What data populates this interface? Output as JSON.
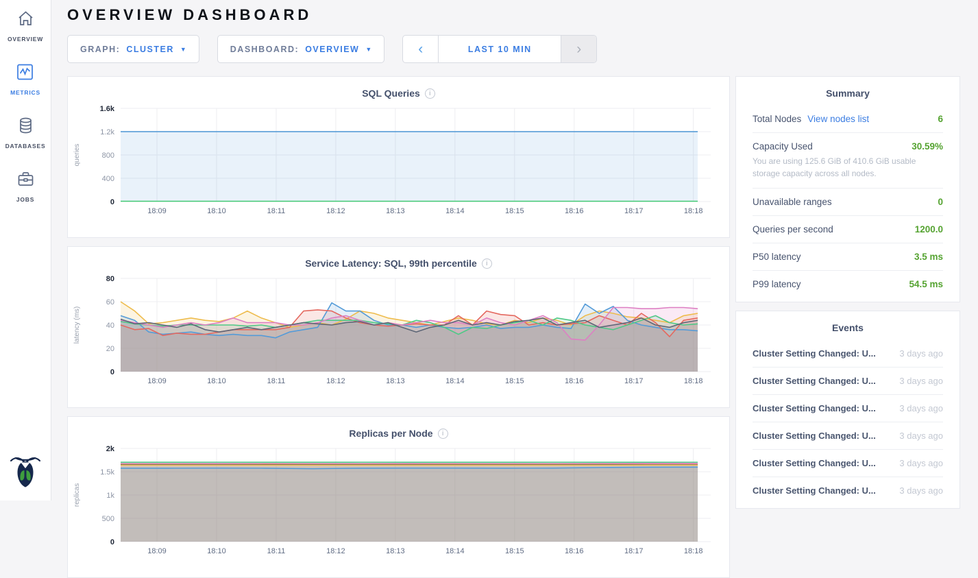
{
  "app": {
    "title": "OVERVIEW DASHBOARD"
  },
  "sidebar": {
    "items": [
      {
        "label": "OVERVIEW",
        "icon": "home-icon",
        "active": false
      },
      {
        "label": "METRICS",
        "icon": "metrics-icon",
        "active": true
      },
      {
        "label": "DATABASES",
        "icon": "database-icon",
        "active": false
      },
      {
        "label": "JOBS",
        "icon": "briefcase-icon",
        "active": false
      }
    ]
  },
  "toolbar": {
    "graph": {
      "label": "GRAPH:",
      "value": "CLUSTER"
    },
    "dashboard": {
      "label": "DASHBOARD:",
      "value": "OVERVIEW"
    },
    "time_range": {
      "label": "LAST 10 MIN",
      "prev_enabled": true,
      "next_enabled": false
    }
  },
  "summary": {
    "title": "Summary",
    "rows": [
      {
        "label": "Total Nodes",
        "link": "View nodes list",
        "value": "6"
      },
      {
        "label": "Capacity Used",
        "value": "30.59%",
        "caption": "You are using 125.6 GiB of 410.6 GiB usable storage capacity across all nodes."
      },
      {
        "label": "Unavailable ranges",
        "value": "0"
      },
      {
        "label": "Queries per second",
        "value": "1200.0"
      },
      {
        "label": "P50 latency",
        "value": "3.5 ms"
      },
      {
        "label": "P99 latency",
        "value": "54.5 ms"
      }
    ],
    "accent_green": "#55a331",
    "link_blue": "#3b7de2"
  },
  "events": {
    "title": "Events",
    "rows": [
      {
        "text": "Cluster Setting Changed: U...",
        "time": "3 days ago"
      },
      {
        "text": "Cluster Setting Changed: U...",
        "time": "3 days ago"
      },
      {
        "text": "Cluster Setting Changed: U...",
        "time": "3 days ago"
      },
      {
        "text": "Cluster Setting Changed: U...",
        "time": "3 days ago"
      },
      {
        "text": "Cluster Setting Changed: U...",
        "time": "3 days ago"
      },
      {
        "text": "Cluster Setting Changed: U...",
        "time": "3 days ago"
      }
    ]
  },
  "chart_data": [
    {
      "type": "area",
      "title": "SQL Queries",
      "xlabel": "",
      "ylabel": "queries",
      "ylim": [
        0,
        1600
      ],
      "grid": true,
      "legend": "none",
      "yticks": [
        {
          "v": 1600,
          "label": "1.6k"
        },
        {
          "v": 1200,
          "label": "1.2k"
        },
        {
          "v": 800,
          "label": "800"
        },
        {
          "v": 400,
          "label": "400"
        },
        {
          "v": 0,
          "label": "0"
        }
      ],
      "xticks": [
        "18:09",
        "18:10",
        "18:11",
        "18:12",
        "18:13",
        "18:14",
        "18:15",
        "18:16",
        "18:17",
        "18:18"
      ],
      "series": [
        {
          "name": "series-1",
          "color": "#4a94d4",
          "fill_opacity": 0.12,
          "values": [
            1200,
            1200
          ]
        },
        {
          "name": "series-2",
          "color": "#42ca73",
          "fill_opacity": 0,
          "values": [
            6,
            6
          ]
        }
      ]
    },
    {
      "type": "line",
      "title": "Service Latency: SQL, 99th percentile",
      "xlabel": "",
      "ylabel": "latency (ms)",
      "ylim": [
        0,
        80
      ],
      "grid": true,
      "legend": "none",
      "yticks": [
        {
          "v": 80,
          "label": "80"
        },
        {
          "v": 60,
          "label": "60"
        },
        {
          "v": 40,
          "label": "40"
        },
        {
          "v": 20,
          "label": "20"
        },
        {
          "v": 0,
          "label": "0"
        }
      ],
      "xticks": [
        "18:09",
        "18:10",
        "18:11",
        "18:12",
        "18:13",
        "18:14",
        "18:15",
        "18:16",
        "18:17",
        "18:18"
      ],
      "series": [
        {
          "name": "series-1",
          "color": "#eebc4d",
          "fill_opacity": 0.16,
          "values": [
            60,
            52,
            41,
            42,
            44,
            46,
            44,
            43,
            46,
            52,
            46,
            42,
            38,
            40,
            42,
            40,
            45,
            52,
            50,
            46,
            44,
            42,
            40,
            43,
            46,
            44,
            41,
            40,
            44,
            42,
            46,
            44,
            40,
            48,
            52,
            50,
            47,
            46,
            44,
            42,
            48,
            50
          ]
        },
        {
          "name": "series-2",
          "color": "#549bd8",
          "fill_opacity": 0.16,
          "values": [
            48,
            44,
            34,
            32,
            33,
            34,
            32,
            31,
            32,
            31,
            31,
            29,
            34,
            36,
            38,
            59,
            52,
            52,
            44,
            40,
            40,
            38,
            40,
            38,
            37,
            38,
            40,
            37,
            38,
            38,
            40,
            38,
            37,
            58,
            50,
            56,
            44,
            40,
            38,
            36,
            36,
            35
          ]
        },
        {
          "name": "series-3",
          "color": "#e4685f",
          "fill_opacity": 0.16,
          "values": [
            40,
            36,
            37,
            31,
            33,
            32,
            32,
            34,
            36,
            36,
            36,
            36,
            38,
            52,
            53,
            52,
            46,
            42,
            40,
            39,
            40,
            41,
            40,
            40,
            48,
            40,
            52,
            49,
            48,
            40,
            42,
            40,
            41,
            42,
            48,
            44,
            40,
            50,
            42,
            30,
            44,
            46
          ]
        },
        {
          "name": "series-4",
          "color": "#4fc987",
          "fill_opacity": 0.16,
          "values": [
            43,
            41,
            40,
            39,
            40,
            40,
            40,
            40,
            40,
            39,
            40,
            38,
            40,
            42,
            44,
            44,
            44,
            44,
            42,
            41,
            40,
            44,
            42,
            38,
            32,
            38,
            37,
            40,
            42,
            44,
            40,
            46,
            44,
            40,
            38,
            36,
            40,
            44,
            48,
            42,
            40,
            41
          ]
        },
        {
          "name": "series-5",
          "color": "#dd7fc3",
          "fill_opacity": 0.16,
          "values": [
            44,
            42,
            40,
            38,
            40,
            42,
            40,
            42,
            46,
            42,
            42,
            42,
            40,
            40,
            42,
            46,
            48,
            44,
            40,
            42,
            40,
            42,
            44,
            42,
            42,
            40,
            46,
            42,
            40,
            44,
            48,
            42,
            28,
            27,
            40,
            55,
            55,
            54,
            54,
            55,
            55,
            54
          ]
        },
        {
          "name": "series-6",
          "color": "#5d6677",
          "fill_opacity": 0.16,
          "values": [
            45,
            41,
            42,
            40,
            38,
            41,
            36,
            34,
            36,
            38,
            36,
            38,
            40,
            42,
            41,
            40,
            42,
            43,
            40,
            42,
            38,
            34,
            38,
            40,
            44,
            40,
            42,
            40,
            43,
            44,
            46,
            40,
            42,
            44,
            38,
            40,
            42,
            46,
            40,
            38,
            42,
            44
          ]
        }
      ]
    },
    {
      "type": "line",
      "title": "Replicas per Node",
      "xlabel": "",
      "ylabel": "replicas",
      "ylim": [
        0,
        2000
      ],
      "grid": true,
      "legend": "none",
      "yticks": [
        {
          "v": 2000,
          "label": "2k"
        },
        {
          "v": 1500,
          "label": "1.5k"
        },
        {
          "v": 1000,
          "label": "1k"
        },
        {
          "v": 500,
          "label": "500"
        },
        {
          "v": 0,
          "label": "0"
        }
      ],
      "xticks": [
        "18:09",
        "18:10",
        "18:11",
        "18:12",
        "18:13",
        "18:14",
        "18:15",
        "18:16",
        "18:17",
        "18:18"
      ],
      "series": [
        {
          "name": "series-1",
          "color": "#4fc987",
          "fill_opacity": 0.14,
          "values": [
            1703,
            1703,
            1704,
            1703,
            1703,
            1704,
            1703,
            1703,
            1703,
            1704,
            1703,
            1703,
            1704
          ]
        },
        {
          "name": "series-2",
          "color": "#dd7fc3",
          "fill_opacity": 0.14,
          "values": [
            1672,
            1672,
            1673,
            1672,
            1672,
            1672,
            1673,
            1672,
            1672,
            1672,
            1673,
            1678,
            1678
          ]
        },
        {
          "name": "series-3",
          "color": "#e4685f",
          "fill_opacity": 0.14,
          "values": [
            1660,
            1660,
            1658,
            1662,
            1660,
            1660,
            1660,
            1661,
            1660,
            1660,
            1660,
            1655,
            1656
          ]
        },
        {
          "name": "series-4",
          "color": "#5d6677",
          "fill_opacity": 0.14,
          "values": [
            1652,
            1652,
            1651,
            1652,
            1652,
            1652,
            1652,
            1652,
            1651,
            1652,
            1652,
            1650,
            1650
          ]
        },
        {
          "name": "series-5",
          "color": "#eebc4d",
          "fill_opacity": 0.14,
          "values": [
            1640,
            1640,
            1641,
            1640,
            1640,
            1640,
            1640,
            1641,
            1640,
            1640,
            1640,
            1642,
            1642
          ]
        },
        {
          "name": "series-6",
          "color": "#549bd8",
          "fill_opacity": 0.14,
          "values": [
            1577,
            1577,
            1578,
            1577,
            1565,
            1577,
            1578,
            1578,
            1577,
            1578,
            1590,
            1597,
            1598
          ]
        }
      ]
    }
  ]
}
